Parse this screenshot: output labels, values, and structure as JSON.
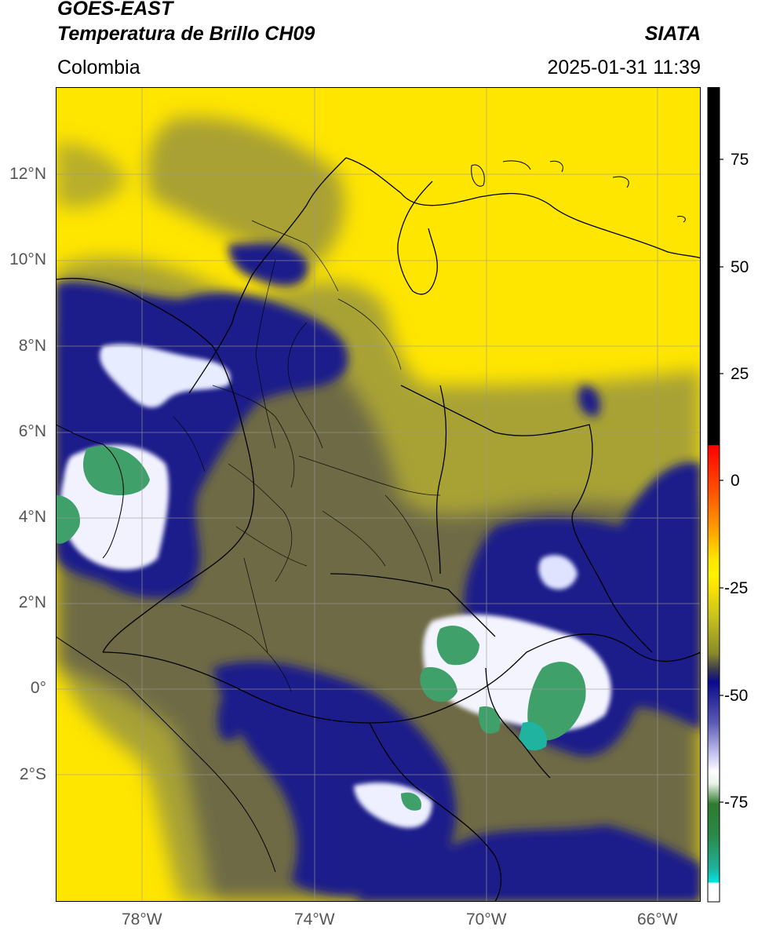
{
  "header": {
    "satellite": "GOES-EAST",
    "product": "Temperatura de Brillo CH09",
    "region": "Colombia",
    "agency": "SIATA",
    "timestamp": "2025-01-31 11:39"
  },
  "map": {
    "lat_labels": [
      "12°N",
      "10°N",
      "8°N",
      "6°N",
      "4°N",
      "2°N",
      "0°",
      "2°S"
    ],
    "lon_labels": [
      "78°W",
      "74°W",
      "70°W",
      "66°W"
    ],
    "extent": {
      "lon_min": -80,
      "lon_max": -65,
      "lat_min": -5,
      "lat_max": 14
    },
    "gridlines": true,
    "colors": {
      "warm_background": "#ffe600",
      "mid": "#8a8a3a",
      "cold_deep": "#1a1f8a",
      "very_cold": "#ffffff",
      "coldest": "#3fa06a",
      "border": "#000000"
    }
  },
  "colorbar": {
    "labels": [
      "75",
      "50",
      "25",
      "0",
      "-25",
      "-50",
      "-75"
    ],
    "range": [
      -95,
      90
    ],
    "colors": {
      "top": "#000000",
      "red": "#ff0000",
      "orange": "#ff8c00",
      "yellow": "#ffe600",
      "olive": "#8a8a2a",
      "blue": "#0a0a8c",
      "white": "#ffffff",
      "green": "#2f7a2f",
      "teal": "#1fb3a0",
      "cyan": "#00e5e5"
    }
  }
}
